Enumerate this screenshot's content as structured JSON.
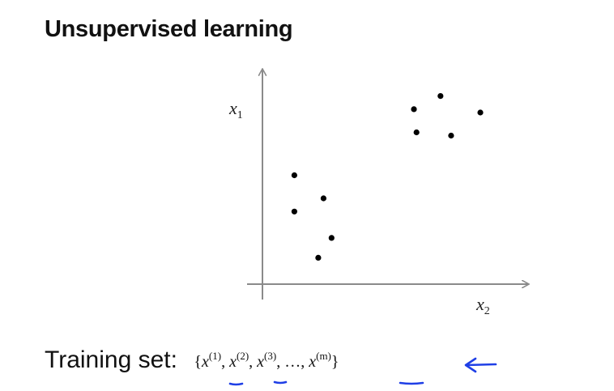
{
  "slide": {
    "title": "Unsupervised learning"
  },
  "chart_data": {
    "type": "scatter",
    "title": "",
    "xlabel": "x2",
    "ylabel": "x1",
    "grid": false,
    "axis_ticks": false,
    "series": [
      {
        "points": [
          {
            "x": 1.2,
            "y": 3.3
          },
          {
            "x": 1.2,
            "y": 2.2
          },
          {
            "x": 2.1,
            "y": 0.8
          },
          {
            "x": 2.3,
            "y": 2.6
          },
          {
            "x": 2.6,
            "y": 1.4
          },
          {
            "x": 5.7,
            "y": 5.3
          },
          {
            "x": 5.8,
            "y": 4.6
          },
          {
            "x": 6.7,
            "y": 5.7
          },
          {
            "x": 7.1,
            "y": 4.5
          },
          {
            "x": 8.2,
            "y": 5.2
          }
        ]
      }
    ],
    "xlim": [
      0,
      10
    ],
    "ylim": [
      0,
      6.5
    ],
    "axis_label_text": {
      "x_main": "x",
      "x_sub": "2",
      "y_main": "x",
      "y_sub": "1"
    }
  },
  "footer": {
    "label": "Training set:",
    "notation": {
      "open": "{",
      "terms": [
        {
          "var": "x",
          "sup": "(1)"
        },
        {
          "var": "x",
          "sup": "(2)"
        },
        {
          "var": "x",
          "sup": "(3)"
        }
      ],
      "ellipsis": "…",
      "last": {
        "var": "x",
        "sup": "(m)"
      },
      "close": "}"
    }
  },
  "annotation_color": "#1f3fe6"
}
